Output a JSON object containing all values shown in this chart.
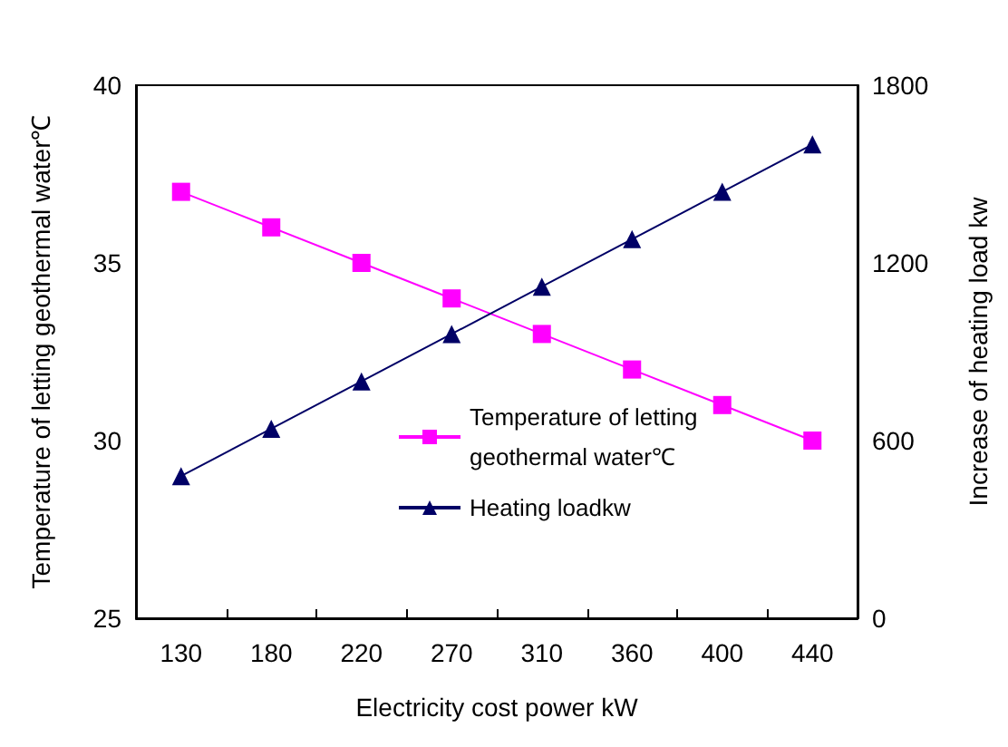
{
  "chart_data": {
    "type": "line",
    "xlabel": "Electricity cost power kW",
    "ylabel": "Temperature of letting geothermal water℃",
    "y2label": "Increase of heating load kw",
    "categories": [
      "130",
      "180",
      "220",
      "270",
      "310",
      "360",
      "400",
      "440"
    ],
    "series": [
      {
        "name": "Temperature of letting geothermal water℃",
        "color": "#ff00ff",
        "marker": "square",
        "values": [
          37,
          36,
          35,
          34,
          33,
          32,
          31,
          30
        ]
      },
      {
        "name": "Heating loadkw",
        "color": "#000066",
        "marker": "triangle",
        "axis": "y2",
        "values": [
          480,
          640,
          800,
          960,
          1120,
          1280,
          1440,
          1600
        ]
      }
    ],
    "ylim": [
      25,
      40
    ],
    "yticks": [
      25,
      30,
      35,
      40
    ],
    "y2lim": [
      0,
      1800
    ],
    "y2ticks": [
      0,
      600,
      1200,
      1800
    ],
    "grid": false,
    "legend": "bottom right",
    "line_style": "solid"
  }
}
